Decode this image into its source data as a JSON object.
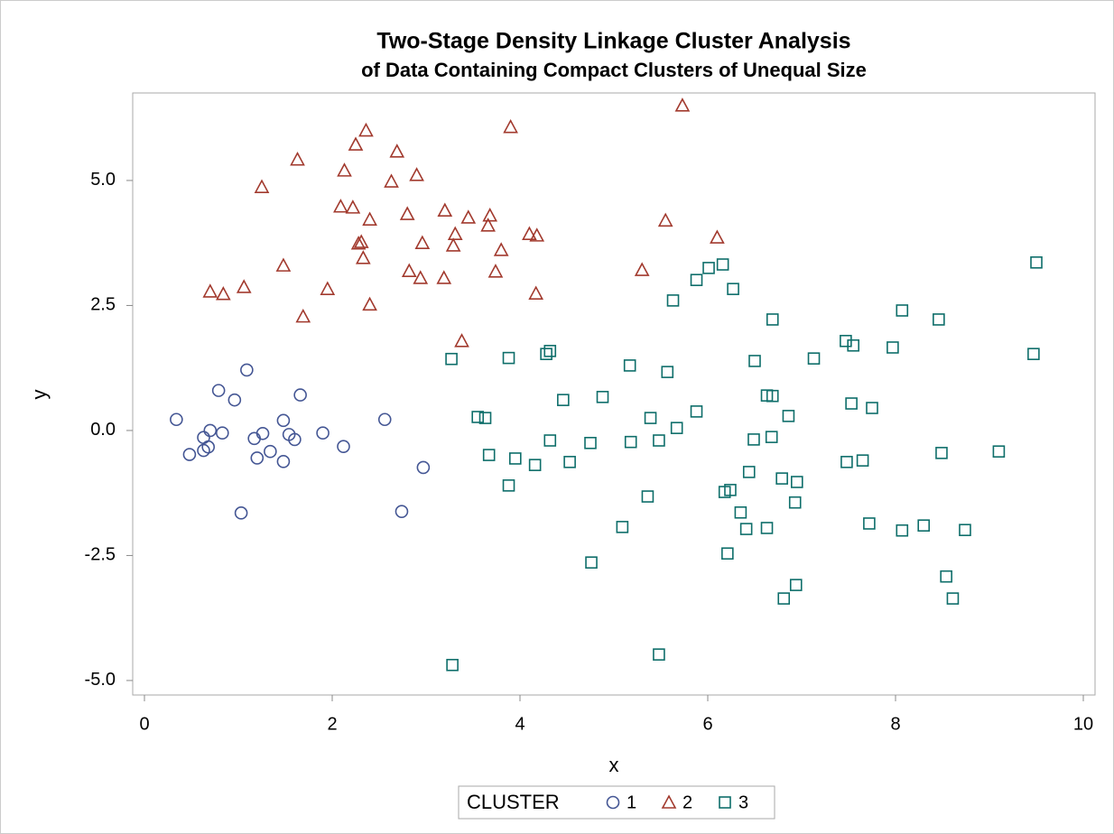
{
  "chart_data": {
    "type": "scatter",
    "title": "Two-Stage Density Linkage Cluster Analysis",
    "subtitle": "of Data Containing Compact Clusters of Unequal Size",
    "x_label": "x",
    "y_label": "y",
    "legend_title": "CLUSTER",
    "legend_position": "bottom",
    "xlim": [
      -0.125,
      10.125
    ],
    "xticks": [
      0,
      2,
      4,
      6,
      8,
      10
    ],
    "ylim": [
      -5.29,
      6.75
    ],
    "yticks": [
      {
        "value": -5,
        "label": "-5.0"
      },
      {
        "value": -2.5,
        "label": "-2.5"
      },
      {
        "value": 0,
        "label": "0.0"
      },
      {
        "value": 2.5,
        "label": "2.5"
      },
      {
        "value": 5,
        "label": "5.0"
      }
    ],
    "grid": false,
    "series": [
      {
        "name": "1",
        "marker": "circle",
        "color": "#445694",
        "x": [
          0.34,
          0.48,
          0.63,
          0.63,
          0.7,
          0.68,
          0.79,
          0.83,
          0.96,
          1.03,
          1.09,
          1.17,
          1.2,
          1.26,
          1.34,
          1.48,
          1.48,
          1.54,
          1.6,
          1.66,
          1.9,
          2.12,
          2.56,
          2.74,
          2.97
        ],
        "values": [
          0.22,
          -0.48,
          -0.4,
          -0.14,
          0.0,
          -0.33,
          0.8,
          -0.05,
          0.61,
          -1.65,
          1.21,
          -0.16,
          -0.55,
          -0.06,
          -0.42,
          0.2,
          -0.62,
          -0.08,
          -0.18,
          0.71,
          -0.05,
          -0.32,
          0.22,
          -1.62,
          -0.74
        ]
      },
      {
        "name": "2",
        "marker": "triangle",
        "color": "#a23a2e",
        "x": [
          0.7,
          0.84,
          1.06,
          1.25,
          1.48,
          1.63,
          1.69,
          1.95,
          2.09,
          2.13,
          2.22,
          2.25,
          2.28,
          2.31,
          2.33,
          2.36,
          2.4,
          2.4,
          2.63,
          2.69,
          2.8,
          2.82,
          2.9,
          2.94,
          2.96,
          3.19,
          3.2,
          3.29,
          3.31,
          3.38,
          3.45,
          3.66,
          3.68,
          3.74,
          3.8,
          3.9,
          4.1,
          4.17,
          4.18,
          5.3,
          5.55,
          5.73,
          6.1
        ],
        "values": [
          2.78,
          2.73,
          2.87,
          4.87,
          3.3,
          5.42,
          2.28,
          2.83,
          4.48,
          5.2,
          4.46,
          5.72,
          3.74,
          3.77,
          3.45,
          6.0,
          4.22,
          2.52,
          4.98,
          5.58,
          4.33,
          3.19,
          5.11,
          3.05,
          3.75,
          3.05,
          4.4,
          3.7,
          3.93,
          1.79,
          4.26,
          4.1,
          4.3,
          3.18,
          3.61,
          6.07,
          3.93,
          2.74,
          3.9,
          3.21,
          4.2,
          6.5,
          3.86
        ]
      },
      {
        "name": "3",
        "marker": "square",
        "color": "#0e6e6a",
        "x": [
          3.27,
          3.28,
          3.55,
          3.63,
          3.67,
          3.88,
          3.88,
          3.95,
          4.16,
          4.28,
          4.32,
          4.32,
          4.46,
          4.53,
          4.75,
          4.76,
          4.88,
          5.09,
          5.17,
          5.18,
          5.36,
          5.39,
          5.48,
          5.48,
          5.57,
          5.67,
          5.63,
          5.88,
          5.88,
          6.01,
          6.16,
          6.18,
          6.24,
          6.21,
          6.27,
          6.35,
          6.41,
          6.44,
          6.49,
          6.5,
          6.63,
          6.63,
          6.68,
          6.69,
          6.69,
          6.79,
          6.81,
          6.86,
          6.93,
          6.95,
          6.94,
          7.13,
          7.47,
          7.48,
          7.53,
          7.55,
          7.65,
          7.72,
          7.75,
          7.97,
          8.07,
          8.07,
          8.3,
          8.46,
          8.49,
          8.54,
          8.61,
          8.74,
          9.1,
          9.47,
          9.5
        ],
        "values": [
          1.43,
          -4.69,
          0.27,
          0.25,
          -0.49,
          -1.1,
          1.45,
          -0.56,
          -0.69,
          1.53,
          1.59,
          -0.2,
          0.61,
          -0.63,
          -0.25,
          -2.64,
          0.67,
          -1.93,
          1.3,
          -0.23,
          -1.32,
          0.25,
          -4.48,
          -0.2,
          1.17,
          0.05,
          2.6,
          3.01,
          0.38,
          3.25,
          3.32,
          -1.23,
          -1.19,
          -2.46,
          2.83,
          -1.64,
          -1.97,
          -0.83,
          -0.18,
          1.39,
          0.7,
          -1.95,
          -0.13,
          2.22,
          0.69,
          -0.96,
          -3.36,
          0.29,
          -1.44,
          -1.03,
          -3.09,
          1.44,
          1.79,
          -0.63,
          0.54,
          1.7,
          -0.6,
          -1.86,
          0.45,
          1.66,
          2.4,
          -2.0,
          -1.9,
          2.22,
          -0.45,
          -2.92,
          -3.36,
          -1.99,
          -0.42,
          1.53,
          3.36
        ]
      }
    ]
  }
}
